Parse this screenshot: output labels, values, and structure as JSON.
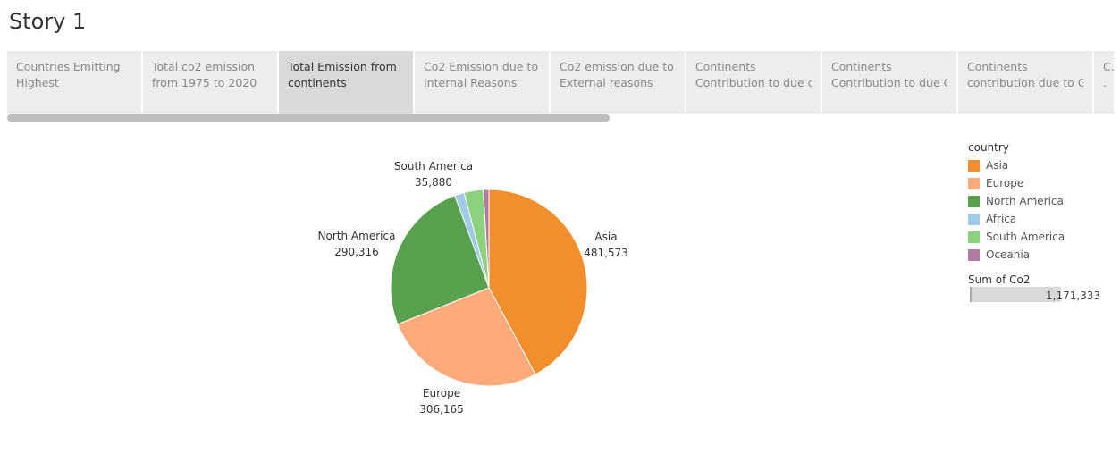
{
  "story": {
    "title": "Story 1"
  },
  "tabs": [
    {
      "line1": "Countries Emitting",
      "line2": "Highest",
      "active": false
    },
    {
      "line1": "Total co2 emission",
      "line2": "from 1975 to 2020",
      "active": false
    },
    {
      "line1": "Total Emission from",
      "line2": "continents",
      "active": true
    },
    {
      "line1": "Co2 Emission due to",
      "line2": "Internal Reasons",
      "active": false
    },
    {
      "line1": "Co2 emission due to",
      "line2": "External reasons",
      "active": false
    },
    {
      "line1": "Continents",
      "line2": "Contribution to due c..",
      "active": false
    },
    {
      "line1": "Continents",
      "line2": "Contribution to due C..",
      "active": false
    },
    {
      "line1": "Continents",
      "line2": "contribution due to G..",
      "active": false
    },
    {
      "line1": "C..",
      "line2": ".",
      "active": false
    }
  ],
  "legend": {
    "title": "country",
    "items": [
      {
        "label": "Asia",
        "color": "#f28e2b"
      },
      {
        "label": "Europe",
        "color": "#ffaa7b"
      },
      {
        "label": "North America",
        "color": "#59a14f"
      },
      {
        "label": "Africa",
        "color": "#a0cbe8"
      },
      {
        "label": "South America",
        "color": "#8cd17d"
      },
      {
        "label": "Oceania",
        "color": "#b07aa1"
      }
    ],
    "size_title": "Sum of Co2",
    "size_value": "1,171,333"
  },
  "chart_data": {
    "type": "pie",
    "title": "",
    "slices": [
      {
        "label": "Asia",
        "value": 481573,
        "display": "481,573",
        "color": "#f28e2b"
      },
      {
        "label": "Europe",
        "value": 306165,
        "display": "306,165",
        "color": "#ffaa7b"
      },
      {
        "label": "North America",
        "value": 290316,
        "display": "290,316",
        "color": "#59a14f"
      },
      {
        "label": "Africa",
        "value": 18000,
        "display": "",
        "color": "#a0cbe8"
      },
      {
        "label": "South America",
        "value": 35880,
        "display": "35,880",
        "color": "#8cd17d"
      },
      {
        "label": "Oceania",
        "value": 10600,
        "display": "",
        "color": "#b07aa1"
      }
    ]
  }
}
